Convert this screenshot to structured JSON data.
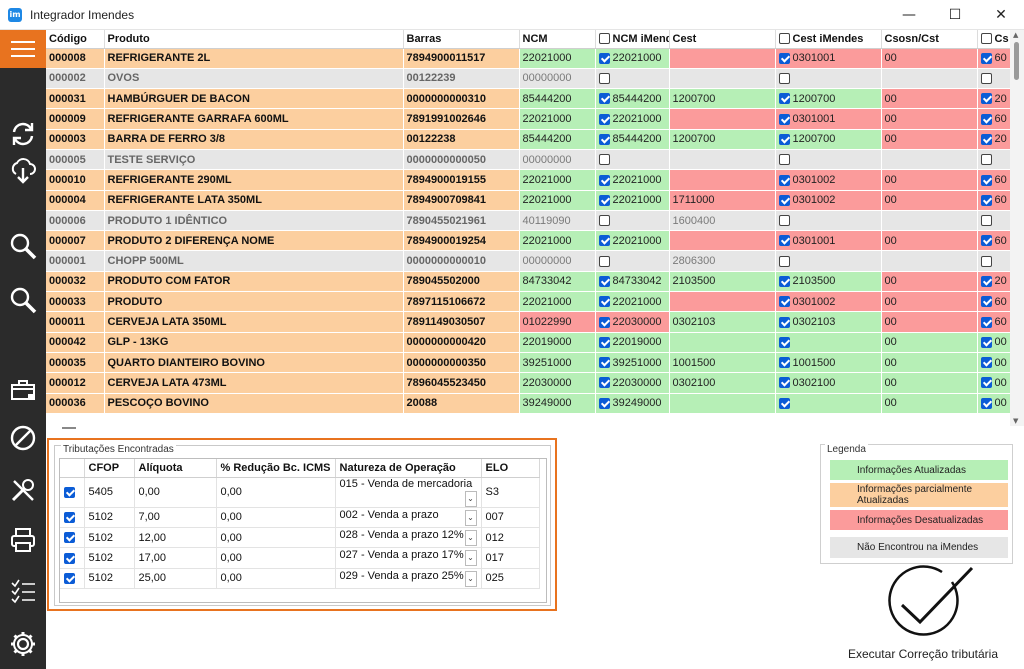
{
  "window": {
    "title": "Integrador Imendes",
    "app_icon": "im",
    "minimize": "—",
    "maximize": "☐",
    "close": "✕"
  },
  "grid": {
    "columns": [
      "Código",
      "Produto",
      "Barras",
      "NCM",
      "NCM iMendes",
      "Cest",
      "Cest iMendes",
      "Csosn/Cst",
      "Cs"
    ],
    "rows": [
      {
        "codigo": "000008",
        "produto": "REFRIGERANTE  2L",
        "barras": "7894900011517",
        "ncm": "22021000",
        "ncm_im": "22021000",
        "ncm_im_checked": true,
        "cest": "",
        "cest_im": "0301001",
        "cest_im_checked": true,
        "csosn": "00",
        "cs": "60",
        "cs_checked": true,
        "row": "orange",
        "ncm_c": "green",
        "ncmim_c": "green",
        "cest_c": "red",
        "cestim_c": "red",
        "csosn_c": "red",
        "cs_c": "red"
      },
      {
        "codigo": "000002",
        "produto": "OVOS",
        "barras": "00122239",
        "ncm": "00000000",
        "ncm_im": "",
        "ncm_im_checked": false,
        "cest": "",
        "cest_im": "",
        "cest_im_checked": false,
        "csosn": "",
        "cs": "",
        "cs_checked": false,
        "row": "grey",
        "ncm_c": "grey",
        "ncmim_c": "grey",
        "cest_c": "grey",
        "cestim_c": "grey",
        "csosn_c": "grey",
        "cs_c": "grey"
      },
      {
        "codigo": "000031",
        "produto": "HAMBÚRGUER DE BACON",
        "barras": "0000000000310",
        "ncm": "85444200",
        "ncm_im": "85444200",
        "ncm_im_checked": true,
        "cest": "1200700",
        "cest_im": "1200700",
        "cest_im_checked": true,
        "csosn": "00",
        "cs": "20",
        "cs_checked": true,
        "row": "orange",
        "ncm_c": "green",
        "ncmim_c": "green",
        "cest_c": "green",
        "cestim_c": "green",
        "csosn_c": "red",
        "cs_c": "red"
      },
      {
        "codigo": "000009",
        "produto": "REFRIGERANTE GARRAFA 600ML",
        "barras": "7891991002646",
        "ncm": "22021000",
        "ncm_im": "22021000",
        "ncm_im_checked": true,
        "cest": "",
        "cest_im": "0301001",
        "cest_im_checked": true,
        "csosn": "00",
        "cs": "60",
        "cs_checked": true,
        "row": "orange",
        "ncm_c": "green",
        "ncmim_c": "green",
        "cest_c": "red",
        "cestim_c": "red",
        "csosn_c": "red",
        "cs_c": "red"
      },
      {
        "codigo": "000003",
        "produto": "BARRA DE FERRO 3/8",
        "barras": "00122238",
        "ncm": "85444200",
        "ncm_im": "85444200",
        "ncm_im_checked": true,
        "cest": "1200700",
        "cest_im": "1200700",
        "cest_im_checked": true,
        "csosn": "00",
        "cs": "20",
        "cs_checked": true,
        "row": "orange",
        "ncm_c": "green",
        "ncmim_c": "green",
        "cest_c": "green",
        "cestim_c": "green",
        "csosn_c": "red",
        "cs_c": "red"
      },
      {
        "codigo": "000005",
        "produto": "TESTE SERVIÇO",
        "barras": "0000000000050",
        "ncm": "00000000",
        "ncm_im": "",
        "ncm_im_checked": false,
        "cest": "",
        "cest_im": "",
        "cest_im_checked": false,
        "csosn": "",
        "cs": "",
        "cs_checked": false,
        "row": "grey",
        "ncm_c": "grey",
        "ncmim_c": "grey",
        "cest_c": "grey",
        "cestim_c": "grey",
        "csosn_c": "grey",
        "cs_c": "grey"
      },
      {
        "codigo": "000010",
        "produto": "REFRIGERANTE 290ML",
        "barras": "7894900019155",
        "ncm": "22021000",
        "ncm_im": "22021000",
        "ncm_im_checked": true,
        "cest": "",
        "cest_im": "0301002",
        "cest_im_checked": true,
        "csosn": "00",
        "cs": "60",
        "cs_checked": true,
        "row": "orange",
        "ncm_c": "green",
        "ncmim_c": "green",
        "cest_c": "red",
        "cestim_c": "red",
        "csosn_c": "red",
        "cs_c": "red"
      },
      {
        "codigo": "000004",
        "produto": "REFRIGERANTE LATA 350ML",
        "barras": "7894900709841",
        "ncm": "22021000",
        "ncm_im": "22021000",
        "ncm_im_checked": true,
        "cest": "1711000",
        "cest_im": "0301002",
        "cest_im_checked": true,
        "csosn": "00",
        "cs": "60",
        "cs_checked": true,
        "row": "orange",
        "ncm_c": "green",
        "ncmim_c": "green",
        "cest_c": "red",
        "cestim_c": "red",
        "csosn_c": "red",
        "cs_c": "red"
      },
      {
        "codigo": "000006",
        "produto": "PRODUTO 1 IDÊNTICO",
        "barras": "7890455021961",
        "ncm": "40119090",
        "ncm_im": "",
        "ncm_im_checked": false,
        "cest": "1600400",
        "cest_im": "",
        "cest_im_checked": false,
        "csosn": "",
        "cs": "",
        "cs_checked": false,
        "row": "grey",
        "ncm_c": "grey",
        "ncmim_c": "grey",
        "cest_c": "grey",
        "cestim_c": "grey",
        "csosn_c": "grey",
        "cs_c": "grey"
      },
      {
        "codigo": "000007",
        "produto": "PRODUTO 2 DIFERENÇA NOME",
        "barras": "7894900019254",
        "ncm": "22021000",
        "ncm_im": "22021000",
        "ncm_im_checked": true,
        "cest": "",
        "cest_im": "0301001",
        "cest_im_checked": true,
        "csosn": "00",
        "cs": "60",
        "cs_checked": true,
        "row": "orange",
        "ncm_c": "green",
        "ncmim_c": "green",
        "cest_c": "red",
        "cestim_c": "red",
        "csosn_c": "red",
        "cs_c": "red"
      },
      {
        "codigo": "000001",
        "produto": "CHOPP 500ML",
        "barras": "0000000000010",
        "ncm": "00000000",
        "ncm_im": "",
        "ncm_im_checked": false,
        "cest": "2806300",
        "cest_im": "",
        "cest_im_checked": false,
        "csosn": "",
        "cs": "",
        "cs_checked": false,
        "row": "grey",
        "ncm_c": "grey",
        "ncmim_c": "grey",
        "cest_c": "grey",
        "cestim_c": "grey",
        "csosn_c": "grey",
        "cs_c": "grey"
      },
      {
        "codigo": "000032",
        "produto": "PRODUTO COM FATOR",
        "barras": "789045502000",
        "ncm": "84733042",
        "ncm_im": "84733042",
        "ncm_im_checked": true,
        "cest": "2103500",
        "cest_im": "2103500",
        "cest_im_checked": true,
        "csosn": "00",
        "cs": "20",
        "cs_checked": true,
        "row": "orange",
        "ncm_c": "green",
        "ncmim_c": "green",
        "cest_c": "green",
        "cestim_c": "green",
        "csosn_c": "red",
        "cs_c": "red"
      },
      {
        "codigo": "000033",
        "produto": "PRODUTO",
        "barras": "7897115106672",
        "ncm": "22021000",
        "ncm_im": "22021000",
        "ncm_im_checked": true,
        "cest": "",
        "cest_im": "0301002",
        "cest_im_checked": true,
        "csosn": "00",
        "cs": "60",
        "cs_checked": true,
        "row": "orange",
        "ncm_c": "green",
        "ncmim_c": "green",
        "cest_c": "red",
        "cestim_c": "red",
        "csosn_c": "red",
        "cs_c": "red"
      },
      {
        "codigo": "000011",
        "produto": "CERVEJA LATA 350ML",
        "barras": "7891149030507",
        "ncm": "01022990",
        "ncm_im": "22030000",
        "ncm_im_checked": true,
        "cest": "0302103",
        "cest_im": "0302103",
        "cest_im_checked": true,
        "csosn": "00",
        "cs": "60",
        "cs_checked": true,
        "row": "orange",
        "ncm_c": "red",
        "ncmim_c": "red",
        "cest_c": "green",
        "cestim_c": "green",
        "csosn_c": "red",
        "cs_c": "red"
      },
      {
        "codigo": "000042",
        "produto": "GLP - 13KG",
        "barras": "0000000000420",
        "ncm": "22019000",
        "ncm_im": "22019000",
        "ncm_im_checked": true,
        "cest": "",
        "cest_im": "",
        "cest_im_checked": true,
        "csosn": "00",
        "cs": "00",
        "cs_checked": true,
        "row": "orange",
        "ncm_c": "green",
        "ncmim_c": "green",
        "cest_c": "green",
        "cestim_c": "green",
        "csosn_c": "green",
        "cs_c": "green"
      },
      {
        "codigo": "000035",
        "produto": "QUARTO DIANTEIRO BOVINO",
        "barras": "0000000000350",
        "ncm": "39251000",
        "ncm_im": "39251000",
        "ncm_im_checked": true,
        "cest": "1001500",
        "cest_im": "1001500",
        "cest_im_checked": true,
        "csosn": "00",
        "cs": "00",
        "cs_checked": true,
        "row": "orange",
        "ncm_c": "green",
        "ncmim_c": "green",
        "cest_c": "green",
        "cestim_c": "green",
        "csosn_c": "green",
        "cs_c": "green"
      },
      {
        "codigo": "000012",
        "produto": "CERVEJA LATA 473ML",
        "barras": "7896045523450",
        "ncm": "22030000",
        "ncm_im": "22030000",
        "ncm_im_checked": true,
        "cest": "0302100",
        "cest_im": "0302100",
        "cest_im_checked": true,
        "csosn": "00",
        "cs": "00",
        "cs_checked": true,
        "row": "orange",
        "ncm_c": "green",
        "ncmim_c": "green",
        "cest_c": "green",
        "cestim_c": "green",
        "csosn_c": "green",
        "cs_c": "green"
      },
      {
        "codigo": "000036",
        "produto": "PESCOÇO BOVINO",
        "barras": "20088",
        "ncm": "39249000",
        "ncm_im": "39249000",
        "ncm_im_checked": true,
        "cest": "",
        "cest_im": "",
        "cest_im_checked": true,
        "csosn": "00",
        "cs": "00",
        "cs_checked": true,
        "row": "orange",
        "ncm_c": "green",
        "ncmim_c": "green",
        "cest_c": "green",
        "cestim_c": "green",
        "csosn_c": "green",
        "cs_c": "green"
      }
    ]
  },
  "tributacoes": {
    "title": "Tributações Encontradas",
    "columns": [
      "CFOP",
      "Alíquota",
      "% Redução Bc. ICMS",
      "Natureza de Operação",
      "ELO"
    ],
    "rows": [
      {
        "cfop": "5405",
        "aliquota": "0,00",
        "reducao": "0,00",
        "natureza": "015 - Venda de mercadoria",
        "elo": "S3"
      },
      {
        "cfop": "5102",
        "aliquota": "7,00",
        "reducao": "0,00",
        "natureza": "002 - Venda a prazo",
        "elo": "007"
      },
      {
        "cfop": "5102",
        "aliquota": "12,00",
        "reducao": "0,00",
        "natureza": "028 - Venda a prazo 12%",
        "elo": "012"
      },
      {
        "cfop": "5102",
        "aliquota": "17,00",
        "reducao": "0,00",
        "natureza": "027 - Venda a prazo 17%",
        "elo": "017"
      },
      {
        "cfop": "5102",
        "aliquota": "25,00",
        "reducao": "0,00",
        "natureza": "029 - Venda a prazo 25%",
        "elo": "025"
      }
    ]
  },
  "legenda": {
    "title": "Legenda",
    "items": [
      {
        "label": "Informações Atualizadas",
        "color": "#b6efb6"
      },
      {
        "label": "Informações parcialmente Atualizadas",
        "color": "#fccf9f"
      },
      {
        "label": "Informações Desatualizadas",
        "color": "#fb9b9b"
      },
      {
        "label": "Não Encontrou na iMendes",
        "color": "#e6e6e6"
      }
    ]
  },
  "execute": {
    "label": "Executar Correção tributária"
  },
  "colors": {
    "accent": "#e8731f",
    "sidebar": "#2b2b2b",
    "checkbox": "#0b5cd6"
  },
  "sidebar_icons": [
    "menu-icon",
    "refresh-icon",
    "cloud-download-icon",
    "search-icon",
    "search-icon",
    "box-icon",
    "cancel-icon",
    "tools-icon",
    "printer-icon",
    "checklist-icon",
    "gear-icon"
  ]
}
